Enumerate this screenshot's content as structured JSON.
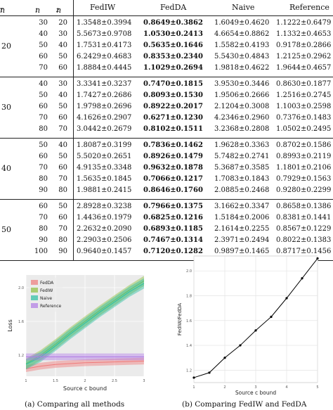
{
  "table": {
    "headers": {
      "nT": "n",
      "nT_sub": "T",
      "n1": "n",
      "n1_sub": "1",
      "n2": "n",
      "n2_sub": "2",
      "fediw": "FedIW",
      "fedda": "FedDA",
      "naive": "Naive",
      "reference": "Reference"
    },
    "blocks": [
      {
        "nT": "20",
        "rows": [
          [
            "30",
            "20",
            "1.3548±0.3994",
            "0.8649±0.3862",
            "1.6049±0.4620",
            "1.1222±0.6479"
          ],
          [
            "40",
            "30",
            "5.5673±0.9708",
            "1.0530±0.2413",
            "4.6654±0.8862",
            "1.1332±0.4653"
          ],
          [
            "50",
            "40",
            "1.7531±0.4173",
            "0.5635±0.1646",
            "1.5582±0.4193",
            "0.9178±0.2866"
          ],
          [
            "60",
            "50",
            "6.2429±0.4683",
            "0.8353±0.2340",
            "5.5430±0.4843",
            "1.2125±0.2962"
          ],
          [
            "70",
            "60",
            "1.8884±0.4445",
            "1.1029±0.2694",
            "1.9818±0.4622",
            "1.9644±0.4657"
          ]
        ]
      },
      {
        "nT": "30",
        "rows": [
          [
            "40",
            "30",
            "3.3341±0.3237",
            "0.7470±0.1815",
            "3.9530±0.3446",
            "0.8630±0.1877"
          ],
          [
            "50",
            "40",
            "1.7427±0.2686",
            "0.8093±0.1530",
            "1.9506±0.2666",
            "1.2516±0.2745"
          ],
          [
            "60",
            "50",
            "1.9798±0.2696",
            "0.8922±0.2017",
            "2.1204±0.3008",
            "1.1003±0.2598"
          ],
          [
            "70",
            "60",
            "4.1626±0.2907",
            "0.6271±0.1230",
            "4.2346±0.2960",
            "0.7376±0.1483"
          ],
          [
            "80",
            "70",
            "3.0442±0.2679",
            "0.8102±0.1511",
            "3.2368±0.2808",
            "1.0502±0.2495"
          ]
        ]
      },
      {
        "nT": "40",
        "rows": [
          [
            "50",
            "40",
            "1.8087±0.3199",
            "0.7836±0.1462",
            "1.9628±0.3363",
            "0.8702±0.1586"
          ],
          [
            "60",
            "50",
            "5.5020±0.2651",
            "0.8926±0.1479",
            "5.7482±0.2741",
            "0.8993±0.2119"
          ],
          [
            "70",
            "60",
            "4.9135±0.3348",
            "0.9632±0.1878",
            "5.3687±0.3585",
            "1.1801±0.2106"
          ],
          [
            "80",
            "70",
            "1.5635±0.1845",
            "0.7066±0.1217",
            "1.7083±0.1843",
            "0.7929±0.1563"
          ],
          [
            "90",
            "80",
            "1.9881±0.2415",
            "0.8646±0.1760",
            "2.0885±0.2468",
            "0.9280±0.2299"
          ]
        ]
      },
      {
        "nT": "50",
        "rows": [
          [
            "60",
            "50",
            "2.8928±0.3238",
            "0.7966±0.1375",
            "3.1662±0.3347",
            "0.8658±0.1386"
          ],
          [
            "70",
            "60",
            "1.4436±0.1979",
            "0.6825±0.1216",
            "1.5184±0.2006",
            "0.8381±0.1441"
          ],
          [
            "80",
            "70",
            "2.2632±0.2090",
            "0.6893±0.1185",
            "2.1614±0.2255",
            "0.8567±0.1229"
          ],
          [
            "90",
            "80",
            "2.2903±0.2506",
            "0.7467±0.1314",
            "2.3971±0.2494",
            "0.8022±0.1383"
          ],
          [
            "100",
            "90",
            "0.9640±0.1457",
            "0.7120±0.1282",
            "0.9897±0.1465",
            "0.8717±0.1456"
          ]
        ]
      }
    ]
  },
  "figure_a": {
    "caption": "(a) Comparing all methods",
    "chart_data": {
      "type": "line",
      "xlabel": "Source c bound",
      "ylabel": "Loss",
      "x": [
        1,
        1.25,
        1.5,
        1.75,
        2,
        2.25,
        2.5,
        2.75,
        3
      ],
      "xticks": [
        "1",
        "1.5",
        "2",
        "2.5",
        "3"
      ],
      "yticks": [
        "1.2",
        "1.6",
        "2.0"
      ],
      "ylim": [
        0.95,
        2.15
      ],
      "legend_position": "top-left",
      "series": [
        {
          "name": "FedDA",
          "color": "#f07a7a",
          "values": [
            1.04,
            1.07,
            1.09,
            1.1,
            1.11,
            1.115,
            1.12,
            1.125,
            1.13
          ]
        },
        {
          "name": "FedIW",
          "color": "#8fbf3f",
          "values": [
            1.1,
            1.2,
            1.33,
            1.47,
            1.6,
            1.73,
            1.85,
            1.97,
            2.08
          ]
        },
        {
          "name": "Naive",
          "color": "#2bbfa3",
          "values": [
            1.09,
            1.18,
            1.31,
            1.45,
            1.58,
            1.71,
            1.83,
            1.95,
            2.05
          ]
        },
        {
          "name": "Reference",
          "color": "#b07ae6",
          "values": [
            1.18,
            1.18,
            1.18,
            1.18,
            1.18,
            1.18,
            1.18,
            1.18,
            1.18
          ]
        }
      ]
    }
  },
  "figure_b": {
    "caption": "(b) Comparing FedIW and FedDA",
    "chart_data": {
      "type": "line",
      "xlabel": "Source c bound",
      "ylabel": "FedIW/FedDA",
      "xticks": [
        "1",
        "2",
        "3",
        "4",
        "5"
      ],
      "yticks": [
        "1.2",
        "1.4",
        "1.6",
        "1.8",
        "2.0"
      ],
      "xlim": [
        1,
        5
      ],
      "ylim": [
        1.1,
        2.12
      ],
      "grid": true,
      "series": [
        {
          "color": "#000000",
          "x": [
            1,
            1.5,
            2,
            2.5,
            3,
            3.5,
            4,
            4.5,
            5
          ],
          "values": [
            1.14,
            1.18,
            1.3,
            1.4,
            1.52,
            1.63,
            1.78,
            1.94,
            2.1
          ]
        }
      ]
    }
  }
}
